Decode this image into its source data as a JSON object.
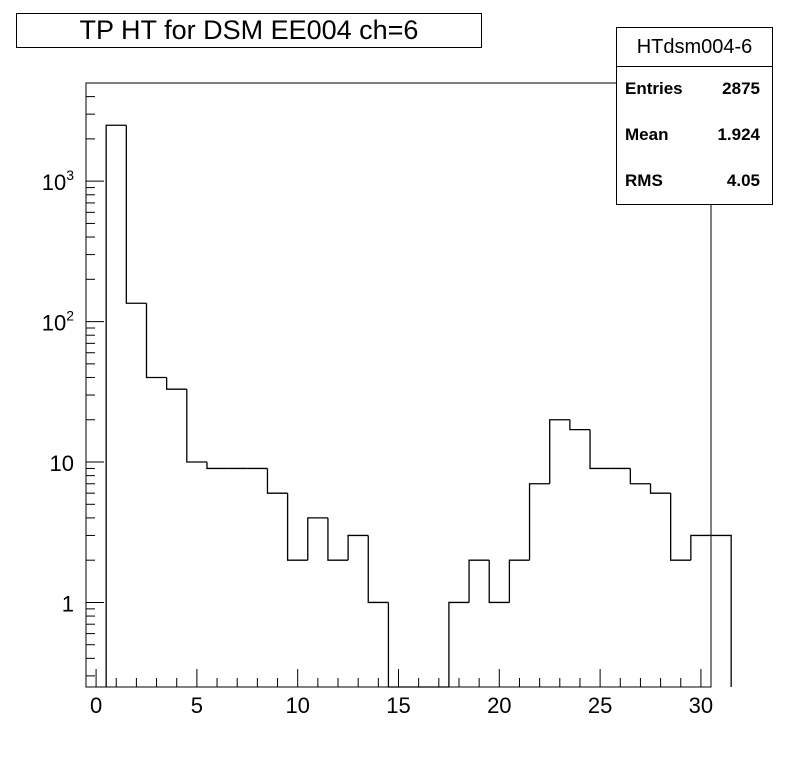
{
  "title": "TP HT for DSM EE004 ch=6",
  "stats": {
    "name": "HTdsm004-6",
    "rows": [
      {
        "label": "Entries",
        "value": "2875"
      },
      {
        "label": "Mean",
        "value": "1.924"
      },
      {
        "label": "RMS",
        "value": "4.05"
      }
    ]
  },
  "chart_data": {
    "type": "histogram",
    "title": "TP HT for DSM EE004 ch=6",
    "xlabel": "",
    "ylabel": "",
    "x_scale": "linear",
    "y_scale": "log",
    "xlim": [
      -0.5,
      30.5
    ],
    "ylim": [
      0.25,
      5000
    ],
    "bin_width": 1,
    "bin_edges_start": 0.5,
    "values": [
      2500,
      135,
      40,
      33,
      10,
      9,
      9,
      9,
      6,
      2,
      4,
      2,
      3,
      1,
      0,
      0,
      0,
      1,
      2,
      1,
      2,
      7,
      20,
      17,
      9,
      9,
      7,
      6,
      2,
      3,
      3
    ],
    "x_ticks": [
      "0",
      "5",
      "10",
      "15",
      "20",
      "25",
      "30"
    ],
    "y_ticks": [
      {
        "value": 1,
        "label": "1",
        "sup": ""
      },
      {
        "value": 10,
        "label": "10",
        "sup": ""
      },
      {
        "value": 100,
        "label": "10",
        "sup": "2"
      },
      {
        "value": 1000,
        "label": "10",
        "sup": "3"
      }
    ],
    "grid": false,
    "line_color": "#000000"
  }
}
